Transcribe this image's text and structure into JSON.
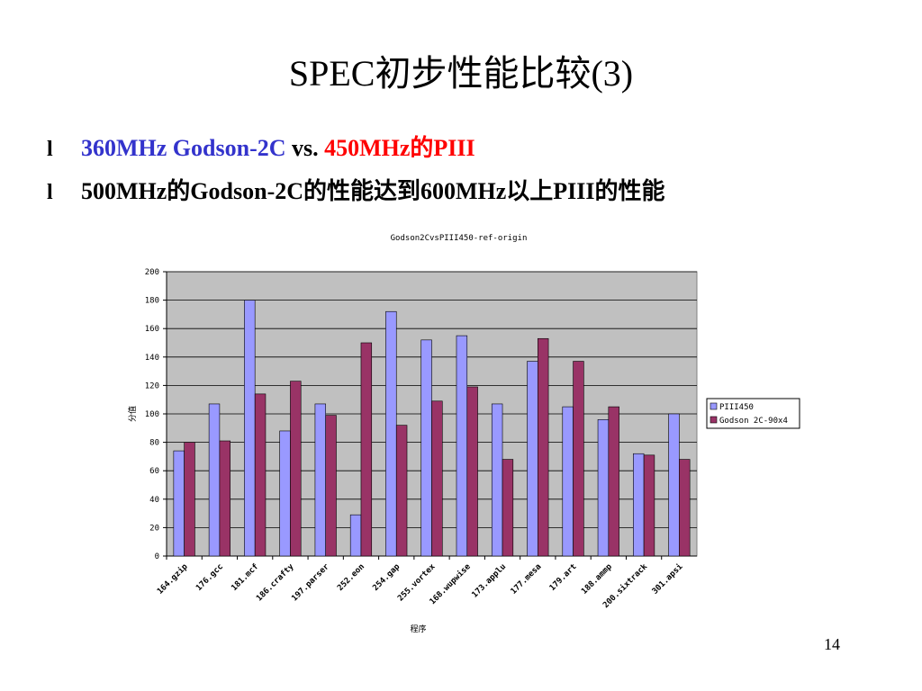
{
  "slide": {
    "title": "SPEC初步性能比较(3)",
    "bullets": [
      {
        "marker": "l",
        "segments": [
          {
            "text": "360MHz Godson-2C",
            "color": "#3333cc"
          },
          {
            "text": " vs. ",
            "color": "#000000"
          },
          {
            "text": "450MHz的PIII",
            "color": "#ff0000"
          }
        ]
      },
      {
        "marker": "l",
        "segments": [
          {
            "text": "500MHz的Godson-2C的性能达到600MHz以上PIII的性能",
            "color": "#000000"
          }
        ]
      }
    ],
    "page_number": "14"
  },
  "chart_data": {
    "type": "bar",
    "title": "Godson2CvsPIII450-ref-origin",
    "x_label": "程序",
    "y_label": "分值",
    "categories": [
      "164.gzip",
      "176.gcc",
      "181.mcf",
      "186.crafty",
      "197.parser",
      "252.eon",
      "254.gap",
      "255.vortex",
      "168.wupwise",
      "173.applu",
      "177.mesa",
      "179.art",
      "188.ammp",
      "200.sixtrack",
      "301.apsi"
    ],
    "series": [
      {
        "name": "PIII450",
        "color": "#9999ff",
        "values": [
          74,
          107,
          180,
          88,
          107,
          29,
          172,
          152,
          155,
          107,
          137,
          105,
          96,
          72,
          100
        ]
      },
      {
        "name": "Godson 2C-90x4",
        "color": "#993366",
        "values": [
          80,
          81,
          114,
          123,
          99,
          150,
          92,
          109,
          119,
          68,
          153,
          137,
          105,
          71,
          68
        ]
      }
    ],
    "ylim": [
      0,
      200
    ],
    "yticks": [
      0,
      20,
      40,
      60,
      80,
      100,
      120,
      140,
      160,
      180,
      200
    ],
    "grid": true,
    "legend": "right",
    "plot_background": "#c0c0c0"
  }
}
